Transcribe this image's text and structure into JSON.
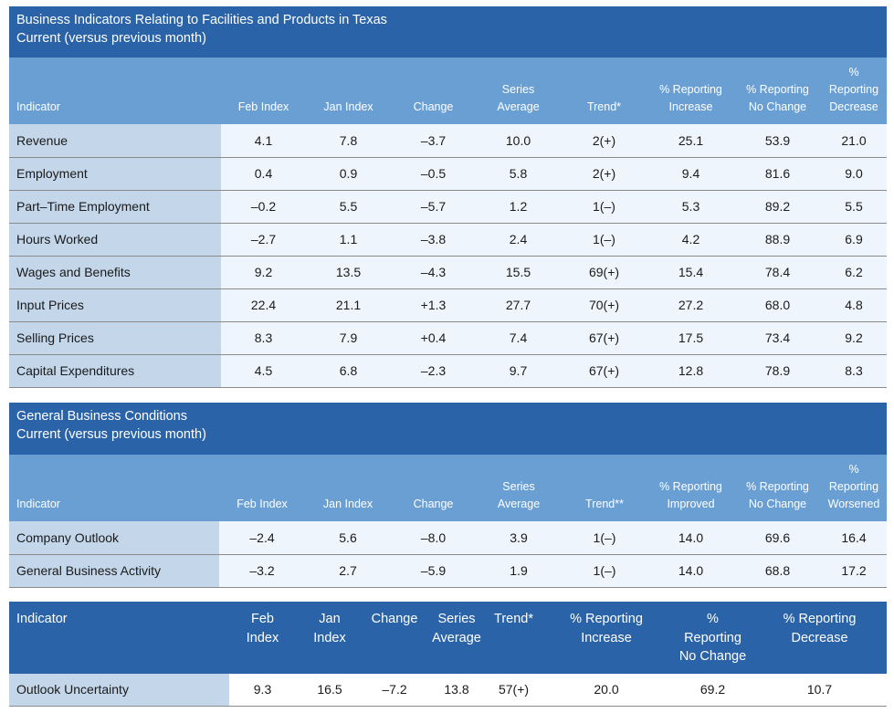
{
  "section1": {
    "title_line1": "Business Indicators Relating to Facilities and Products in Texas",
    "title_line2": "Current (versus previous month)",
    "headers": [
      "Indicator",
      "Feb Index",
      "Jan Index",
      "Change",
      "Series\nAverage",
      "Trend*",
      "% Reporting\nIncrease",
      "% Reporting\nNo Change",
      "%\nReporting\nDecrease"
    ],
    "rows": [
      [
        "Revenue",
        "4.1",
        "7.8",
        "–3.7",
        "10.0",
        "2(+)",
        "25.1",
        "53.9",
        "21.0"
      ],
      [
        "Employment",
        "0.4",
        "0.9",
        "–0.5",
        "5.8",
        "2(+)",
        "9.4",
        "81.6",
        "9.0"
      ],
      [
        "Part–Time Employment",
        "–0.2",
        "5.5",
        "–5.7",
        "1.2",
        "1(–)",
        "5.3",
        "89.2",
        "5.5"
      ],
      [
        "Hours Worked",
        "–2.7",
        "1.1",
        "–3.8",
        "2.4",
        "1(–)",
        "4.2",
        "88.9",
        "6.9"
      ],
      [
        "Wages and Benefits",
        "9.2",
        "13.5",
        "–4.3",
        "15.5",
        "69(+)",
        "15.4",
        "78.4",
        "6.2"
      ],
      [
        "Input Prices",
        "22.4",
        "21.1",
        "+1.3",
        "27.7",
        "70(+)",
        "27.2",
        "68.0",
        "4.8"
      ],
      [
        "Selling Prices",
        "8.3",
        "7.9",
        "+0.4",
        "7.4",
        "67(+)",
        "17.5",
        "73.4",
        "9.2"
      ],
      [
        "Capital Expenditures",
        "4.5",
        "6.8",
        "–2.3",
        "9.7",
        "67(+)",
        "12.8",
        "78.9",
        "8.3"
      ]
    ]
  },
  "section2": {
    "title_line1": "General Business Conditions",
    "title_line2": "Current (versus previous month)",
    "headers": [
      "Indicator",
      "Feb Index",
      "Jan Index",
      "Change",
      "Series\nAverage",
      "Trend**",
      "% Reporting\nImproved",
      "% Reporting\nNo Change",
      "%\nReporting\nWorsened"
    ],
    "rows": [
      [
        "Company Outlook",
        "–2.4",
        "5.6",
        "–8.0",
        "3.9",
        "1(–)",
        "14.0",
        "69.6",
        "16.4"
      ],
      [
        "General Business Activity",
        "–3.2",
        "2.7",
        "–5.9",
        "1.9",
        "1(–)",
        "14.0",
        "68.8",
        "17.2"
      ]
    ]
  },
  "section3": {
    "headers": [
      "Indicator",
      "Feb\nIndex",
      "Jan\nIndex",
      "Change",
      "Series\nAverage",
      "Trend*",
      "% Reporting\nIncrease",
      "%\nReporting\nNo Change",
      "% Reporting\nDecrease"
    ],
    "rows": [
      [
        "Outlook Uncertainty",
        "9.3",
        "16.5",
        "–7.2",
        "13.8",
        "57(+)",
        "20.0",
        "69.2",
        "10.7"
      ]
    ]
  }
}
